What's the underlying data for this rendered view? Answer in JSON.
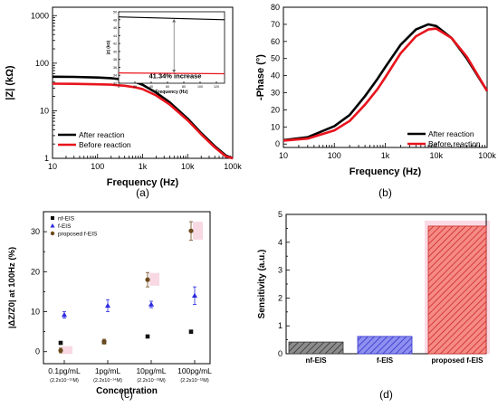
{
  "chart_data": [
    {
      "panel": "(a)",
      "type": "line",
      "xlabel": "Frequency (Hz)",
      "ylabel": "|Z| (kΩ)",
      "xscale": "log",
      "yscale": "log",
      "xlim": [
        10,
        100000
      ],
      "ylim": [
        1,
        1500
      ],
      "xticks": [
        "10",
        "100",
        "1k",
        "10k",
        "100k"
      ],
      "yticks": [
        "1",
        "10",
        "100",
        "1000"
      ],
      "legend_position": "bottom-left",
      "series": [
        {
          "name": "After reaction",
          "color": "#000000",
          "x": [
            10,
            30,
            100,
            200,
            400,
            700,
            1000,
            2000,
            4000,
            10000,
            20000,
            40000,
            70000,
            100000
          ],
          "y": [
            52,
            51.5,
            50,
            48.5,
            45,
            40,
            35,
            24,
            15,
            6.8,
            3.4,
            1.8,
            1.15,
            0.9
          ]
        },
        {
          "name": "Before reaction",
          "color": "#e8141d",
          "x": [
            10,
            30,
            100,
            200,
            400,
            700,
            1000,
            2000,
            4000,
            10000,
            20000,
            40000,
            70000,
            100000
          ],
          "y": [
            37,
            36.7,
            36,
            35.3,
            33.5,
            31,
            28.5,
            21,
            13.5,
            6.3,
            3.2,
            1.7,
            1.1,
            0.88
          ]
        }
      ],
      "inset": {
        "ylabel": "|Z| (kΩ)",
        "xlabel": "Frequency (Hz)",
        "xlim": [
          0,
          130
        ],
        "ylim": [
          32,
          50
        ],
        "xticks": [
          "0",
          "20",
          "40",
          "60",
          "80",
          "100",
          "120"
        ],
        "yticks": [
          "32",
          "34",
          "36",
          "38",
          "40",
          "42",
          "44",
          "46",
          "48",
          "50"
        ],
        "after": {
          "x": [
            0,
            130
          ],
          "y": [
            48.7,
            48.0
          ]
        },
        "before": {
          "x": [
            0,
            130
          ],
          "y": [
            34.6,
            34.4
          ]
        },
        "annotation": "41.34% increase"
      }
    },
    {
      "panel": "(b)",
      "type": "line",
      "xlabel": "Frequency (Hz)",
      "ylabel": "-Phase (°)",
      "xscale": "log",
      "xlim": [
        10,
        100000
      ],
      "ylim": [
        -2,
        80
      ],
      "xticks": [
        "10",
        "100",
        "1k",
        "10k",
        "100k"
      ],
      "yticks": [
        "0",
        "10",
        "20",
        "30",
        "40",
        "50",
        "60",
        "70",
        "80"
      ],
      "legend_position": "bottom-right",
      "series": [
        {
          "name": "After reaction",
          "color": "#000000",
          "x": [
            10,
            30,
            100,
            200,
            400,
            700,
            1000,
            2000,
            4000,
            7000,
            10000,
            20000,
            40000,
            100000
          ],
          "y": [
            2.3,
            4,
            10.5,
            17,
            28,
            38,
            45,
            58,
            67,
            70,
            69,
            62,
            50,
            31
          ]
        },
        {
          "name": "Before reaction",
          "color": "#e8141d",
          "x": [
            10,
            30,
            100,
            200,
            400,
            700,
            1000,
            2000,
            4000,
            7000,
            10000,
            20000,
            40000,
            100000
          ],
          "y": [
            2.0,
            3.2,
            8,
            13.5,
            23,
            32,
            39,
            53,
            63,
            67,
            67.5,
            62,
            51,
            31
          ]
        }
      ]
    },
    {
      "panel": "(c)",
      "type": "scatter",
      "xlabel": "Concentration",
      "ylabel": "|ΔZ/Z0| at 100Hz (%)",
      "ylim": [
        -3,
        35
      ],
      "yticks": [
        "0",
        "10",
        "20",
        "30"
      ],
      "categories": [
        "0.1pg/mL",
        "1pg/mL",
        "10pg/mL",
        "100pg/mL"
      ],
      "category_sublabels": [
        "(2.2x10⁻¹⁵M)",
        "(2.2x10⁻¹⁴M)",
        "(2.2x10⁻¹³M)",
        "(2.2x10⁻¹²M)"
      ],
      "legend_position": "top-left",
      "series": [
        {
          "name": "nf-EIS",
          "color": "#111111",
          "marker": "square",
          "values": [
            2.2,
            2.4,
            3.8,
            5.0
          ],
          "errors": [
            0.3,
            0.3,
            0.3,
            0.4
          ]
        },
        {
          "name": "f-EIS",
          "color": "#2a2ae0",
          "marker": "triangle",
          "values": [
            9.2,
            11.5,
            11.8,
            14.0
          ],
          "errors": [
            0.8,
            1.5,
            0.8,
            2.2
          ]
        },
        {
          "name": "proposed f-EIS",
          "color": "#6b4a1e",
          "marker": "circle",
          "values": [
            0.3,
            2.5,
            18.0,
            30.2
          ],
          "errors": [
            0.6,
            0.6,
            1.8,
            2.3
          ]
        }
      ]
    },
    {
      "panel": "(d)",
      "type": "bar",
      "ylabel": "Sensitivity (a.u.)",
      "ylim": [
        0,
        5
      ],
      "yticks": [
        "0",
        "1",
        "2",
        "3",
        "4",
        "5"
      ],
      "categories": [
        "nf-EIS",
        "f-EIS",
        "proposed f-EIS"
      ],
      "values": [
        0.42,
        0.62,
        4.58
      ],
      "colors": [
        "#4a4a4a",
        "#4b4bd8",
        "#f0504d"
      ]
    }
  ]
}
